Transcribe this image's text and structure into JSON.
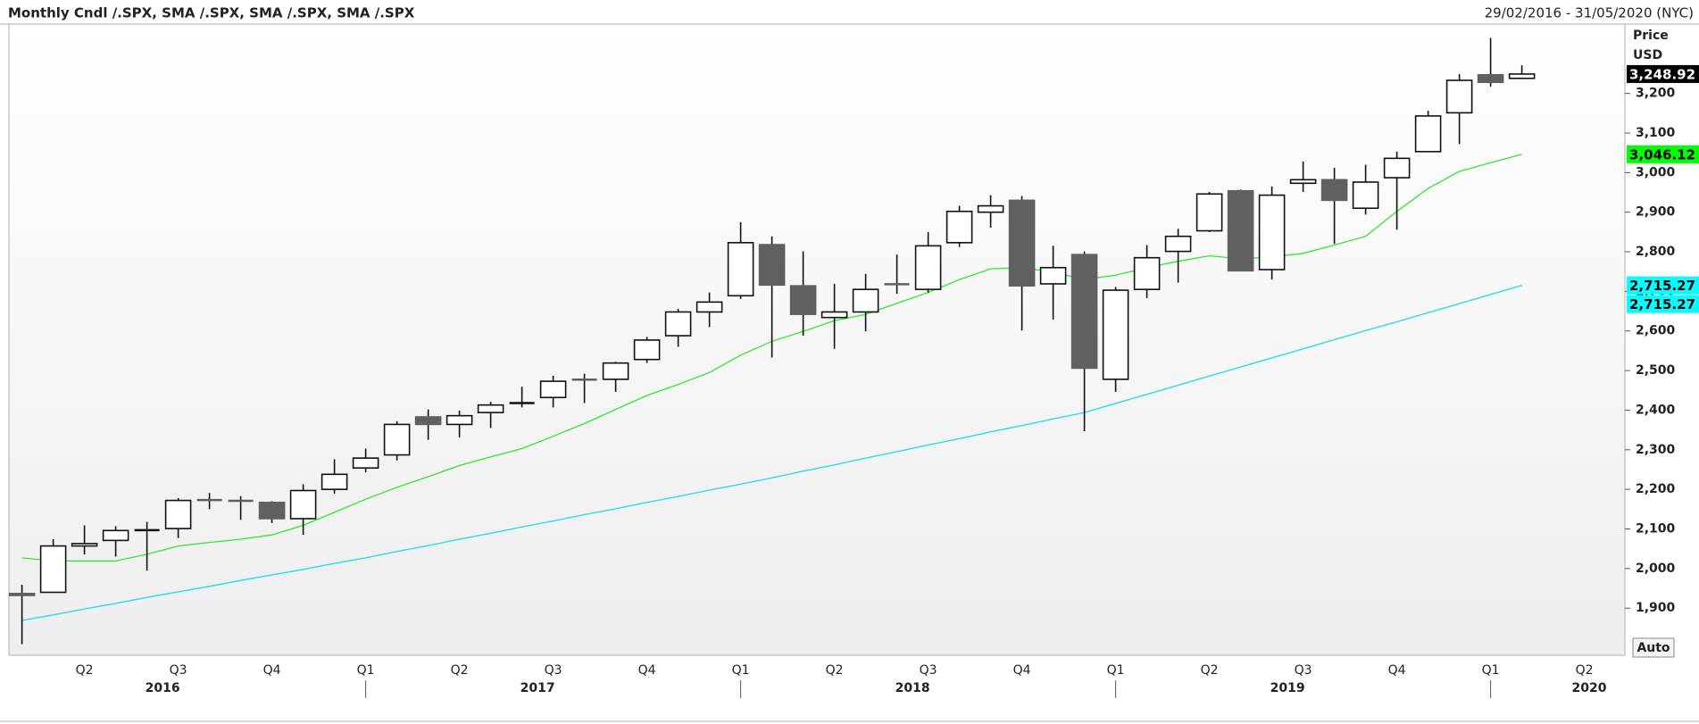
{
  "chart_data": {
    "type": "candlestick",
    "title": "Monthly Cndl /.SPX, SMA /.SPX, SMA /.SPX, SMA /.SPX",
    "subtitle": "29/02/2016 - 31/05/2020 (NYC)",
    "y_axis_label": "Price",
    "y_axis_unit": "USD",
    "button": "Auto",
    "categories": [
      null,
      null,
      "Q2",
      null,
      null,
      "Q3",
      null,
      null,
      "Q4",
      null,
      null,
      "Q1",
      null,
      null,
      "Q2",
      null,
      null,
      "Q3",
      null,
      null,
      "Q4",
      null,
      null,
      "Q1",
      null,
      null,
      "Q2",
      null,
      null,
      "Q3",
      null,
      null,
      "Q4",
      null,
      null,
      "Q1",
      null,
      null,
      "Q2",
      null,
      null,
      "Q3",
      null,
      null,
      "Q4",
      null,
      null,
      "Q1",
      null,
      null,
      "Q2",
      null
    ],
    "years": [
      "2016",
      "2017",
      "2018",
      "2019",
      "2020"
    ],
    "open": [
      1937,
      1940,
      2057,
      2071,
      2097,
      2101,
      2173,
      2171,
      2167,
      2126,
      2200,
      2254,
      2287,
      2383,
      2364,
      2394,
      2418,
      2432,
      2477,
      2478,
      2528,
      2588,
      2648,
      2689,
      2818,
      2714,
      2634,
      2648,
      2718,
      2705,
      2823,
      2900,
      2930,
      2719,
      2793,
      2478,
      2705,
      2801,
      2853,
      2954,
      2755,
      2973,
      2982,
      2910,
      2987,
      3053,
      3151,
      3247,
      3238,
      null,
      null,
      null
    ],
    "high": [
      1959,
      2074,
      2109,
      2107,
      2118,
      2178,
      2191,
      2183,
      2170,
      2213,
      2276,
      2303,
      2372,
      2402,
      2399,
      2421,
      2459,
      2487,
      2492,
      2522,
      2585,
      2656,
      2697,
      2875,
      2839,
      2801,
      2719,
      2744,
      2793,
      2850,
      2916,
      2943,
      2941,
      2815,
      2801,
      2711,
      2817,
      2858,
      2951,
      2957,
      2965,
      3028,
      3012,
      3020,
      3053,
      3156,
      3249,
      3340,
      3271,
      null,
      null,
      null
    ],
    "low": [
      1809,
      1940,
      2036,
      2030,
      1995,
      2077,
      2150,
      2123,
      2115,
      2085,
      2189,
      2243,
      2273,
      2325,
      2331,
      2355,
      2407,
      2407,
      2418,
      2446,
      2519,
      2560,
      2610,
      2681,
      2533,
      2588,
      2555,
      2599,
      2694,
      2697,
      2812,
      2861,
      2601,
      2629,
      2347,
      2446,
      2683,
      2722,
      2850,
      2752,
      2730,
      2951,
      2820,
      2894,
      2856,
      3053,
      3072,
      3217,
      3238,
      null,
      null,
      null
    ],
    "close": [
      1932,
      2057,
      2063,
      2096,
      2099,
      2172,
      2171,
      2168,
      2126,
      2197,
      2238,
      2279,
      2364,
      2364,
      2386,
      2413,
      2421,
      2473,
      2475,
      2519,
      2577,
      2648,
      2673,
      2823,
      2716,
      2642,
      2648,
      2705,
      2716,
      2815,
      2902,
      2916,
      2714,
      2760,
      2506,
      2703,
      2785,
      2839,
      2946,
      2752,
      2943,
      2982,
      2930,
      2976,
      3036,
      3143,
      3233,
      3228,
      3248.92,
      null,
      null,
      null
    ],
    "value_labels": [
      null,
      null,
      null,
      null,
      null,
      null,
      null,
      null,
      null,
      null,
      null,
      null,
      null,
      null,
      null,
      null,
      null,
      null,
      null,
      null,
      null,
      null,
      null,
      null,
      null,
      null,
      null,
      null,
      null,
      null,
      null,
      null,
      null,
      null,
      null,
      null,
      null,
      null,
      null,
      null,
      null,
      null,
      null,
      null,
      null,
      null,
      null,
      null,
      "3,248.92",
      null,
      null,
      null
    ],
    "color_up": "#ffffff",
    "color_down": "#606060",
    "label_color": "#000000",
    "series": [
      {
        "type": "line",
        "color": "#2ee82e",
        "label_color": "#00ff00",
        "values": [
          2027,
          2019,
          2019,
          2019,
          2036,
          2057,
          2066,
          2074,
          2085,
          2109,
          2142,
          2175,
          2205,
          2232,
          2260,
          2282,
          2303,
          2334,
          2366,
          2402,
          2437,
          2465,
          2495,
          2539,
          2574,
          2599,
          2626,
          2642,
          2670,
          2697,
          2730,
          2757,
          2760,
          2749,
          2730,
          2741,
          2760,
          2776,
          2790,
          2782,
          2787,
          2796,
          2817,
          2839,
          2902,
          2960,
          3003,
          3025,
          3046.12,
          null,
          null,
          null
        ],
        "value_labels": [
          null,
          null,
          null,
          null,
          null,
          null,
          null,
          null,
          null,
          null,
          null,
          null,
          null,
          null,
          null,
          null,
          null,
          null,
          null,
          null,
          null,
          null,
          null,
          null,
          null,
          null,
          null,
          null,
          null,
          null,
          null,
          null,
          null,
          null,
          null,
          null,
          null,
          null,
          null,
          null,
          null,
          null,
          null,
          null,
          null,
          null,
          null,
          null,
          "3,046.12",
          null,
          null,
          null
        ]
      },
      {
        "type": "line",
        "color": "#33dded",
        "label_color": "#00ffff",
        "values": [
          1869,
          1883,
          1898,
          1912,
          1927,
          1941,
          1955,
          1970,
          1984,
          1998,
          2013,
          2027,
          2043,
          2058,
          2074,
          2089,
          2105,
          2120,
          2136,
          2151,
          2167,
          2182,
          2198,
          2213,
          2229,
          2246,
          2262,
          2279,
          2295,
          2312,
          2328,
          2345,
          2361,
          2378,
          2394,
          2417,
          2440,
          2463,
          2486,
          2509,
          2532,
          2555,
          2578,
          2601,
          2623,
          2646,
          2669,
          2692,
          2715.27,
          null,
          null,
          null
        ],
        "value_labels": [
          null,
          null,
          null,
          null,
          null,
          null,
          null,
          null,
          null,
          null,
          null,
          null,
          null,
          null,
          null,
          null,
          null,
          null,
          null,
          null,
          null,
          null,
          null,
          null,
          null,
          null,
          null,
          null,
          null,
          null,
          null,
          null,
          null,
          null,
          null,
          null,
          null,
          null,
          null,
          null,
          null,
          null,
          null,
          null,
          null,
          null,
          null,
          null,
          "2,715.27",
          null,
          null,
          null
        ]
      },
      {
        "type": "line",
        "color": "#33dded",
        "label_color": "#00ffff",
        "values": [
          1869,
          1883,
          1898,
          1912,
          1927,
          1941,
          1955,
          1970,
          1984,
          1998,
          2013,
          2027,
          2043,
          2058,
          2074,
          2089,
          2105,
          2120,
          2136,
          2151,
          2167,
          2182,
          2198,
          2213,
          2229,
          2246,
          2262,
          2279,
          2295,
          2312,
          2328,
          2345,
          2361,
          2378,
          2394,
          2417,
          2440,
          2463,
          2486,
          2509,
          2532,
          2555,
          2578,
          2601,
          2623,
          2646,
          2669,
          2692,
          2715.27,
          null,
          null,
          null
        ],
        "value_labels": [
          null,
          null,
          null,
          null,
          null,
          null,
          null,
          null,
          null,
          null,
          null,
          null,
          null,
          null,
          null,
          null,
          null,
          null,
          null,
          null,
          null,
          null,
          null,
          null,
          null,
          null,
          null,
          null,
          null,
          null,
          null,
          null,
          null,
          null,
          null,
          null,
          null,
          null,
          null,
          null,
          null,
          null,
          null,
          null,
          null,
          null,
          null,
          null,
          "2,715.27",
          null,
          null,
          null
        ]
      }
    ],
    "ylim": [
      1781,
      3375
    ],
    "yticks": [
      {
        "value": 1900,
        "label": "1,900"
      },
      {
        "value": 2000,
        "label": "2,000"
      },
      {
        "value": 2100,
        "label": "2,100"
      },
      {
        "value": 2200,
        "label": "2,200"
      },
      {
        "value": 2300,
        "label": "2,300"
      },
      {
        "value": 2400,
        "label": "2,400"
      },
      {
        "value": 2500,
        "label": "2,500"
      },
      {
        "value": 2600,
        "label": "2,600"
      },
      {
        "value": 2700,
        "label": "2,700"
      },
      {
        "value": 2800,
        "label": "2,800"
      },
      {
        "value": 2900,
        "label": "2,900"
      },
      {
        "value": 3000,
        "label": "3,000"
      },
      {
        "value": 3100,
        "label": "3,100"
      },
      {
        "value": 3200,
        "label": "3,200"
      }
    ],
    "grid": false
  }
}
